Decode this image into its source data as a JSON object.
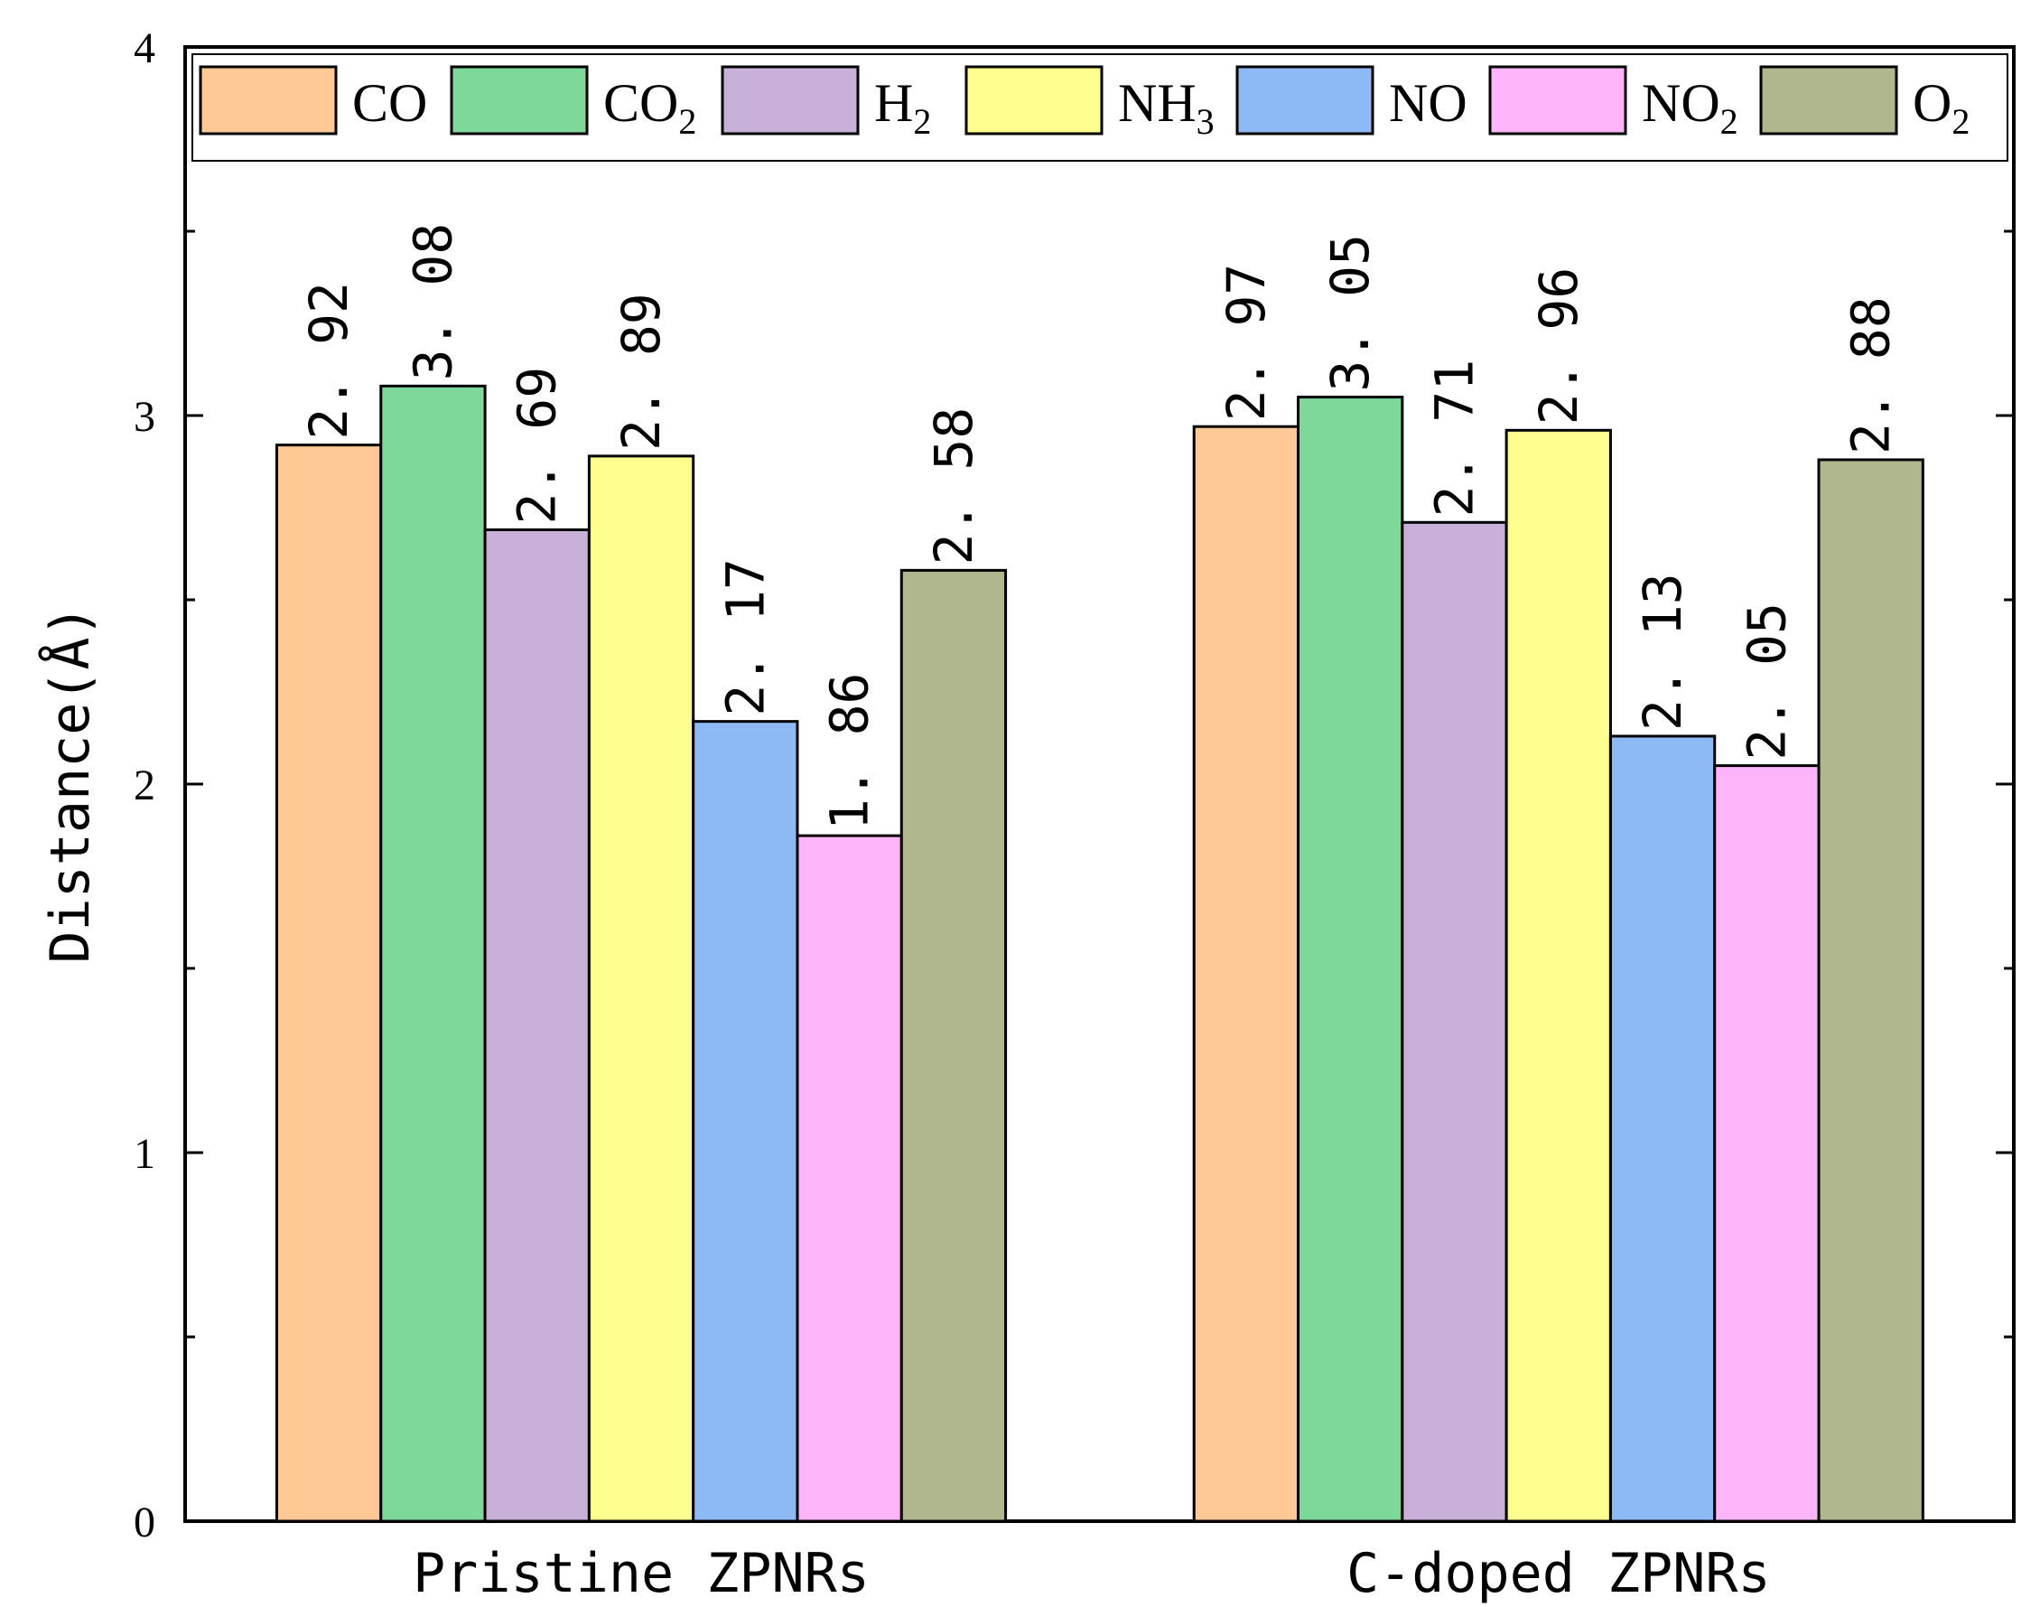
{
  "chart_data": {
    "type": "bar",
    "title": "",
    "xlabel": "",
    "ylabel": "Distance(Å)",
    "ylim": [
      0,
      4
    ],
    "yticks": [
      0,
      1,
      2,
      3,
      4
    ],
    "ytick_labels": [
      "0",
      "1",
      "2",
      "3",
      "4"
    ],
    "grid": false,
    "legend_position": "top",
    "categories": [
      "Pristine ZPNRs",
      "C-doped ZPNRs"
    ],
    "series": [
      {
        "name": "CO",
        "base": "CO",
        "sub": "",
        "color": "#FFC894",
        "values": [
          2.92,
          2.97
        ],
        "labels": [
          "2. 92",
          "2. 97"
        ]
      },
      {
        "name": "CO2",
        "base": "CO",
        "sub": "2",
        "color": "#7ED89A",
        "values": [
          3.08,
          3.05
        ],
        "labels": [
          "3. 08",
          "3. 05"
        ]
      },
      {
        "name": "H2",
        "base": "H",
        "sub": "2",
        "color": "#C8B0D8",
        "values": [
          2.69,
          2.71
        ],
        "labels": [
          "2. 69",
          "2. 71"
        ]
      },
      {
        "name": "NH3",
        "base": "NH",
        "sub": "3",
        "color": "#FFFF90",
        "values": [
          2.89,
          2.96
        ],
        "labels": [
          "2. 89",
          "2. 96"
        ]
      },
      {
        "name": "NO",
        "base": "NO",
        "sub": "",
        "color": "#8DBAF5",
        "values": [
          2.17,
          2.13
        ],
        "labels": [
          "2. 17",
          "2. 13"
        ]
      },
      {
        "name": "NO2",
        "base": "NO",
        "sub": "2",
        "color": "#FDB4F8",
        "values": [
          1.86,
          2.05
        ],
        "labels": [
          "1. 86",
          "2. 05"
        ]
      },
      {
        "name": "O2",
        "base": "O",
        "sub": "2",
        "color": "#B0B68E",
        "values": [
          2.58,
          2.88
        ],
        "labels": [
          "2. 58",
          "2. 88"
        ]
      }
    ]
  }
}
